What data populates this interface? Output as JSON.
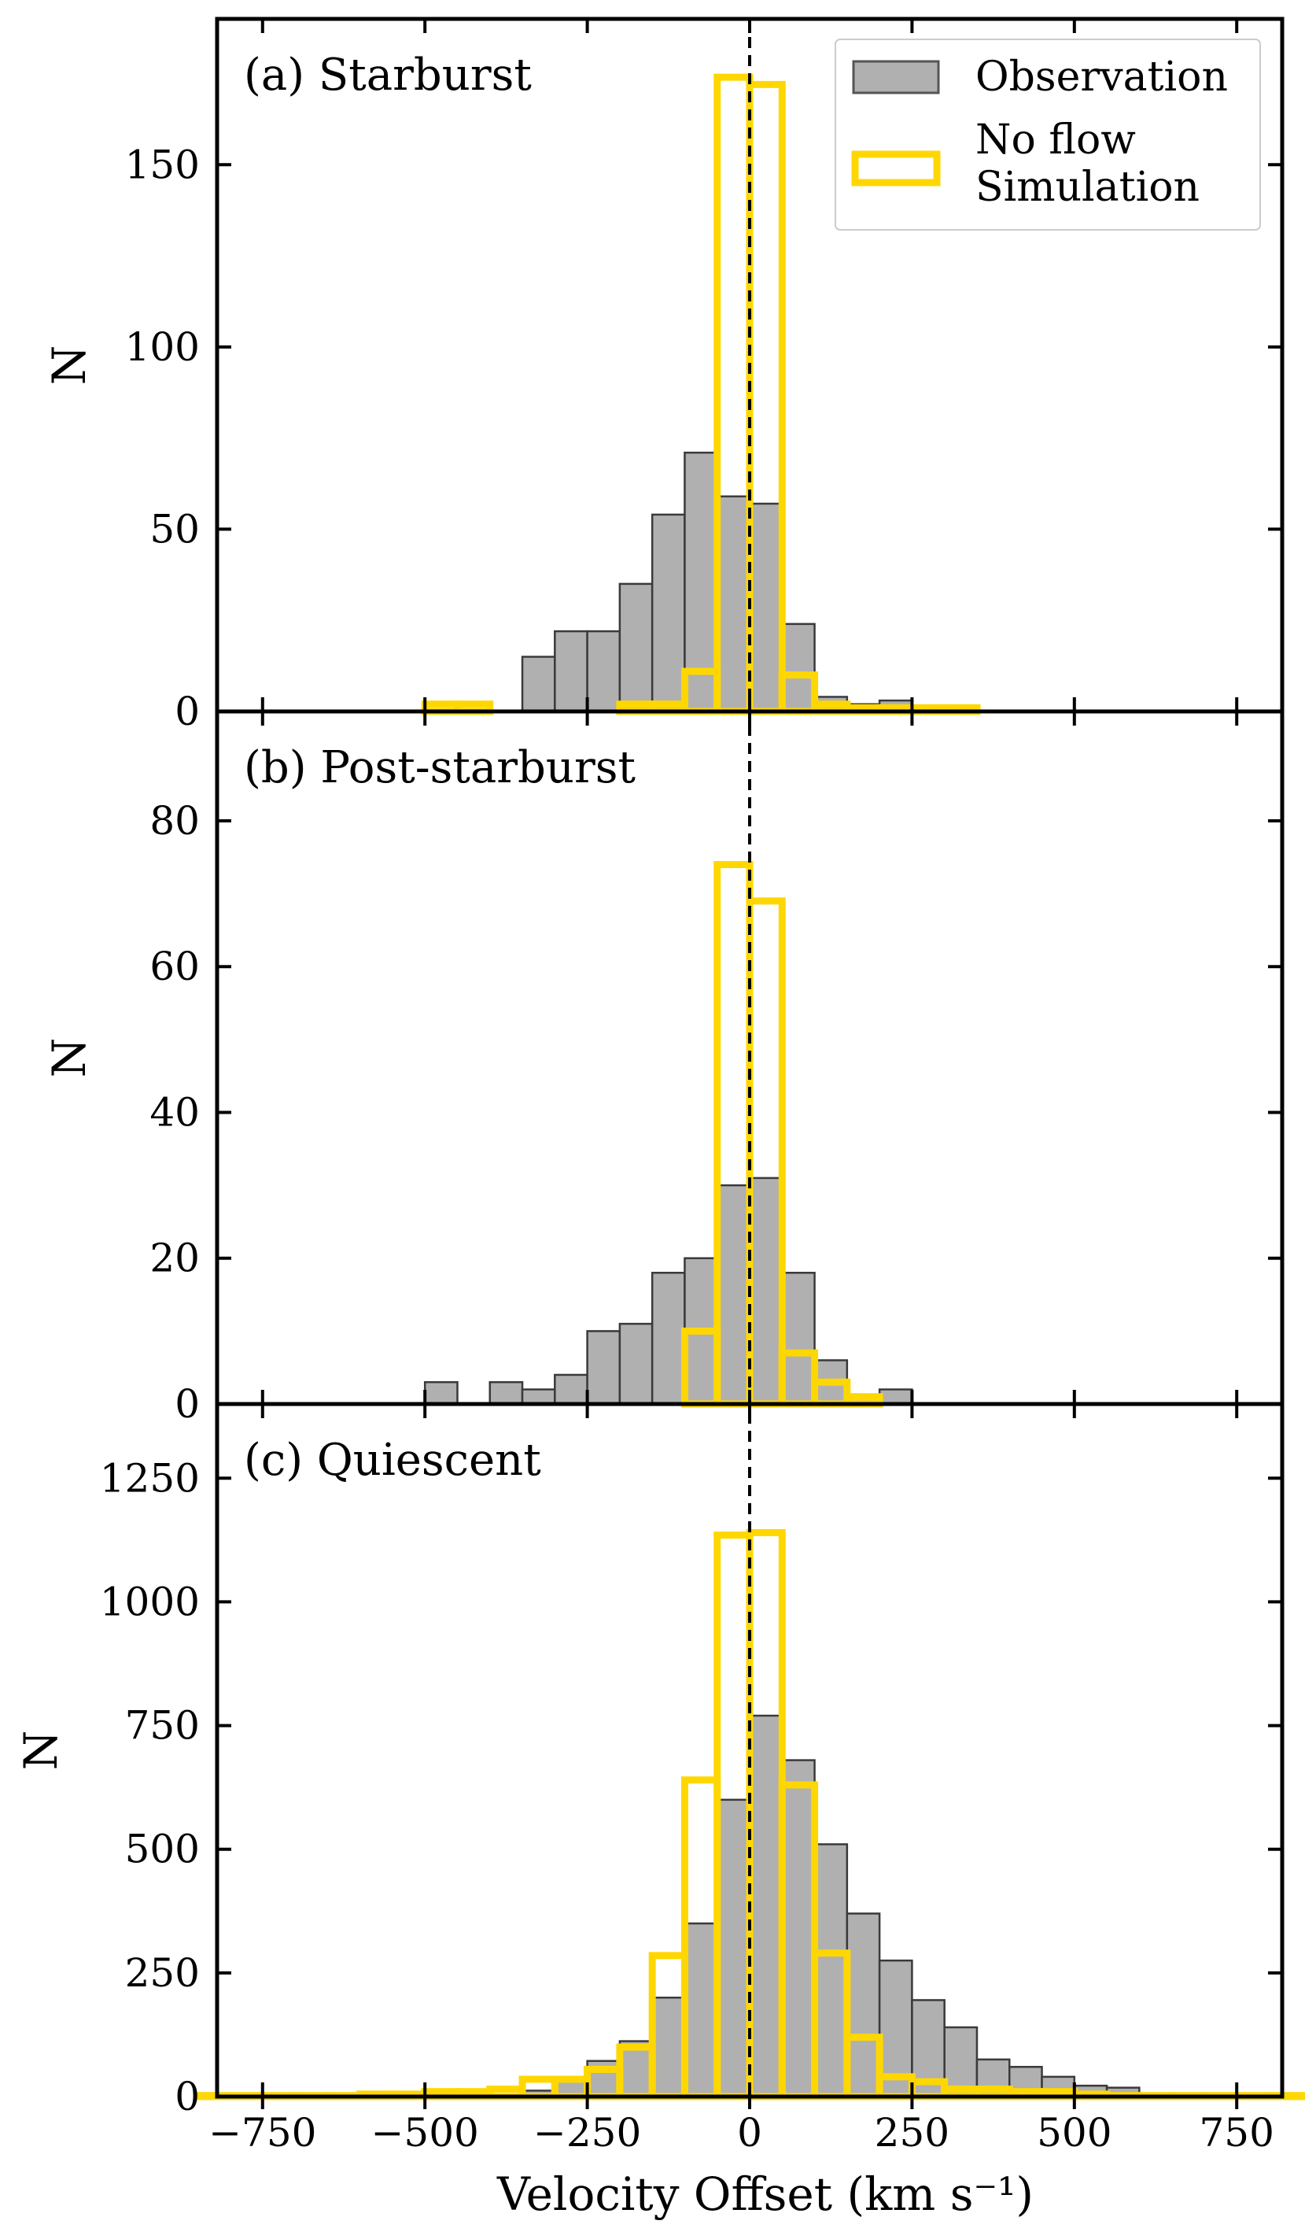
{
  "chart_data": {
    "type": "bar",
    "xlabel": "Velocity Offset (km s⁻¹)",
    "xlim": [
      -820,
      820
    ],
    "xticks": [
      -750,
      -500,
      -250,
      0,
      250,
      500,
      750
    ],
    "xtick_labels": [
      "−750",
      "−500",
      "−250",
      "0",
      "250",
      "500",
      "750"
    ],
    "bin_width": 50,
    "reference_line_x": 0,
    "legend": {
      "placement": "top-right",
      "entries": [
        {
          "label": "Observation",
          "color": "#b0b0b0"
        },
        {
          "label_lines": [
            "No flow",
            "Simulation"
          ],
          "color": "#ffd700"
        }
      ]
    },
    "panels": [
      {
        "title": "(a) Starburst",
        "ylabel": "N",
        "ylim": [
          0,
          190
        ],
        "yticks": [
          0,
          50,
          100,
          150
        ],
        "observation": {
          "bin_left": [
            -350,
            -300,
            -250,
            -200,
            -150,
            -100,
            -50,
            0,
            50,
            100,
            150,
            200,
            250
          ],
          "values": [
            15,
            22,
            22,
            35,
            54,
            71,
            59,
            57,
            24,
            4,
            2,
            3,
            1
          ]
        },
        "simulation": {
          "bin_left": [
            -500,
            -450,
            -400,
            -350,
            -300,
            -250,
            -200,
            -150,
            -100,
            -50,
            0,
            50,
            100,
            150,
            200,
            250,
            300
          ],
          "values": [
            2,
            2,
            0,
            0,
            0,
            0,
            2,
            2,
            11,
            174,
            172,
            10,
            2,
            1,
            1,
            1,
            1
          ]
        }
      },
      {
        "title": "(b) Post-starburst",
        "ylabel": "N",
        "ylim": [
          0,
          95
        ],
        "yticks": [
          0,
          20,
          40,
          60,
          80
        ],
        "observation": {
          "bin_left": [
            -500,
            -450,
            -400,
            -350,
            -300,
            -250,
            -200,
            -150,
            -100,
            -50,
            0,
            50,
            100,
            150,
            200,
            250
          ],
          "values": [
            3,
            0,
            3,
            2,
            4,
            10,
            11,
            18,
            20,
            30,
            31,
            18,
            6,
            1,
            2,
            0
          ]
        },
        "simulation": {
          "bin_left": [
            -500,
            -450,
            -400,
            -350,
            -300,
            -250,
            -200,
            -150,
            -100,
            -50,
            0,
            50,
            100,
            150,
            200,
            250,
            300
          ],
          "values": [
            0,
            0,
            0,
            0,
            0,
            0,
            0,
            0,
            10,
            74,
            69,
            7,
            3,
            1,
            0,
            0,
            0
          ]
        }
      },
      {
        "title": "(c) Quiescent",
        "ylabel": "N",
        "ylim": [
          0,
          1400
        ],
        "yticks": [
          0,
          250,
          500,
          750,
          1000,
          1250
        ],
        "observation": {
          "bin_left": [
            -400,
            -350,
            -300,
            -250,
            -200,
            -150,
            -100,
            -50,
            0,
            50,
            100,
            150,
            200,
            250,
            300,
            350,
            400,
            450,
            500,
            550,
            600
          ],
          "values": [
            5,
            12,
            35,
            72,
            112,
            200,
            350,
            600,
            770,
            680,
            510,
            370,
            275,
            195,
            140,
            75,
            60,
            40,
            22,
            18,
            5
          ]
        },
        "simulation": {
          "bin_left": [
            -850,
            -800,
            -750,
            -700,
            -650,
            -600,
            -550,
            -500,
            -450,
            -400,
            -350,
            -300,
            -250,
            -200,
            -150,
            -100,
            -50,
            0,
            50,
            100,
            150,
            200,
            250,
            300,
            350,
            400,
            450,
            500,
            550,
            600,
            650,
            700,
            750,
            800
          ],
          "values": [
            2,
            2,
            2,
            2,
            2,
            5,
            5,
            10,
            10,
            15,
            35,
            35,
            55,
            100,
            285,
            640,
            1135,
            1140,
            630,
            290,
            120,
            40,
            30,
            15,
            15,
            10,
            10,
            5,
            2,
            2,
            2,
            2,
            2,
            2
          ]
        }
      }
    ]
  }
}
